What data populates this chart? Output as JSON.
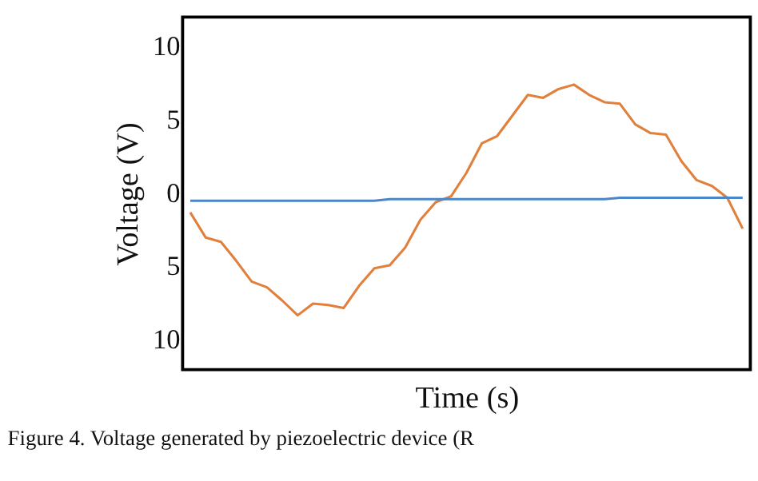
{
  "chart_data": {
    "type": "line",
    "xlabel": "Time (s)",
    "ylabel": "Voltage (V)",
    "annotations": [
      "Figure 4. Voltage generated by piezoelectric device (R"
    ],
    "categories": [
      null,
      null,
      null,
      null,
      null,
      null,
      null,
      null,
      null,
      null,
      null,
      null,
      null,
      null,
      null,
      null,
      null,
      null,
      null,
      null,
      null,
      null,
      null,
      null,
      null,
      null,
      null,
      null,
      null,
      null,
      null,
      null,
      null,
      null,
      null,
      null,
      null
    ],
    "series": [
      {
        "color": "#e0803c",
        "values": [
          -1.3,
          -3.0,
          -3.3,
          -4.6,
          -6.0,
          -6.4,
          -7.3,
          -8.3,
          -7.5,
          -7.6,
          -7.8,
          -6.3,
          -5.1,
          -4.9,
          -3.7,
          -1.8,
          -0.6,
          -0.2,
          1.4,
          3.4,
          3.9,
          5.3,
          6.7,
          6.5,
          7.1,
          7.4,
          6.7,
          6.2,
          6.1,
          4.7,
          4.1,
          4.0,
          2.2,
          0.9,
          0.5,
          -0.3,
          -2.4
        ]
      },
      {
        "color": "#4a86c8",
        "values": [
          -0.5,
          -0.5,
          -0.5,
          -0.5,
          -0.5,
          -0.5,
          -0.5,
          -0.5,
          -0.5,
          -0.5,
          -0.5,
          -0.5,
          -0.5,
          -0.4,
          -0.4,
          -0.4,
          -0.4,
          -0.4,
          -0.4,
          -0.4,
          -0.4,
          -0.4,
          -0.4,
          -0.4,
          -0.4,
          -0.4,
          -0.4,
          -0.4,
          -0.3,
          -0.3,
          -0.3,
          -0.3,
          -0.3,
          -0.3,
          -0.3,
          -0.3,
          -0.3
        ]
      }
    ],
    "ylim": [
      -12,
      12
    ],
    "yticks": [
      {
        "value": -10,
        "label": "10"
      },
      {
        "value": -5,
        "label": "5"
      },
      0,
      5,
      10
    ],
    "tick_labels": "y",
    "grid": false,
    "legend": false,
    "line_style": "solid",
    "marker": "none"
  }
}
